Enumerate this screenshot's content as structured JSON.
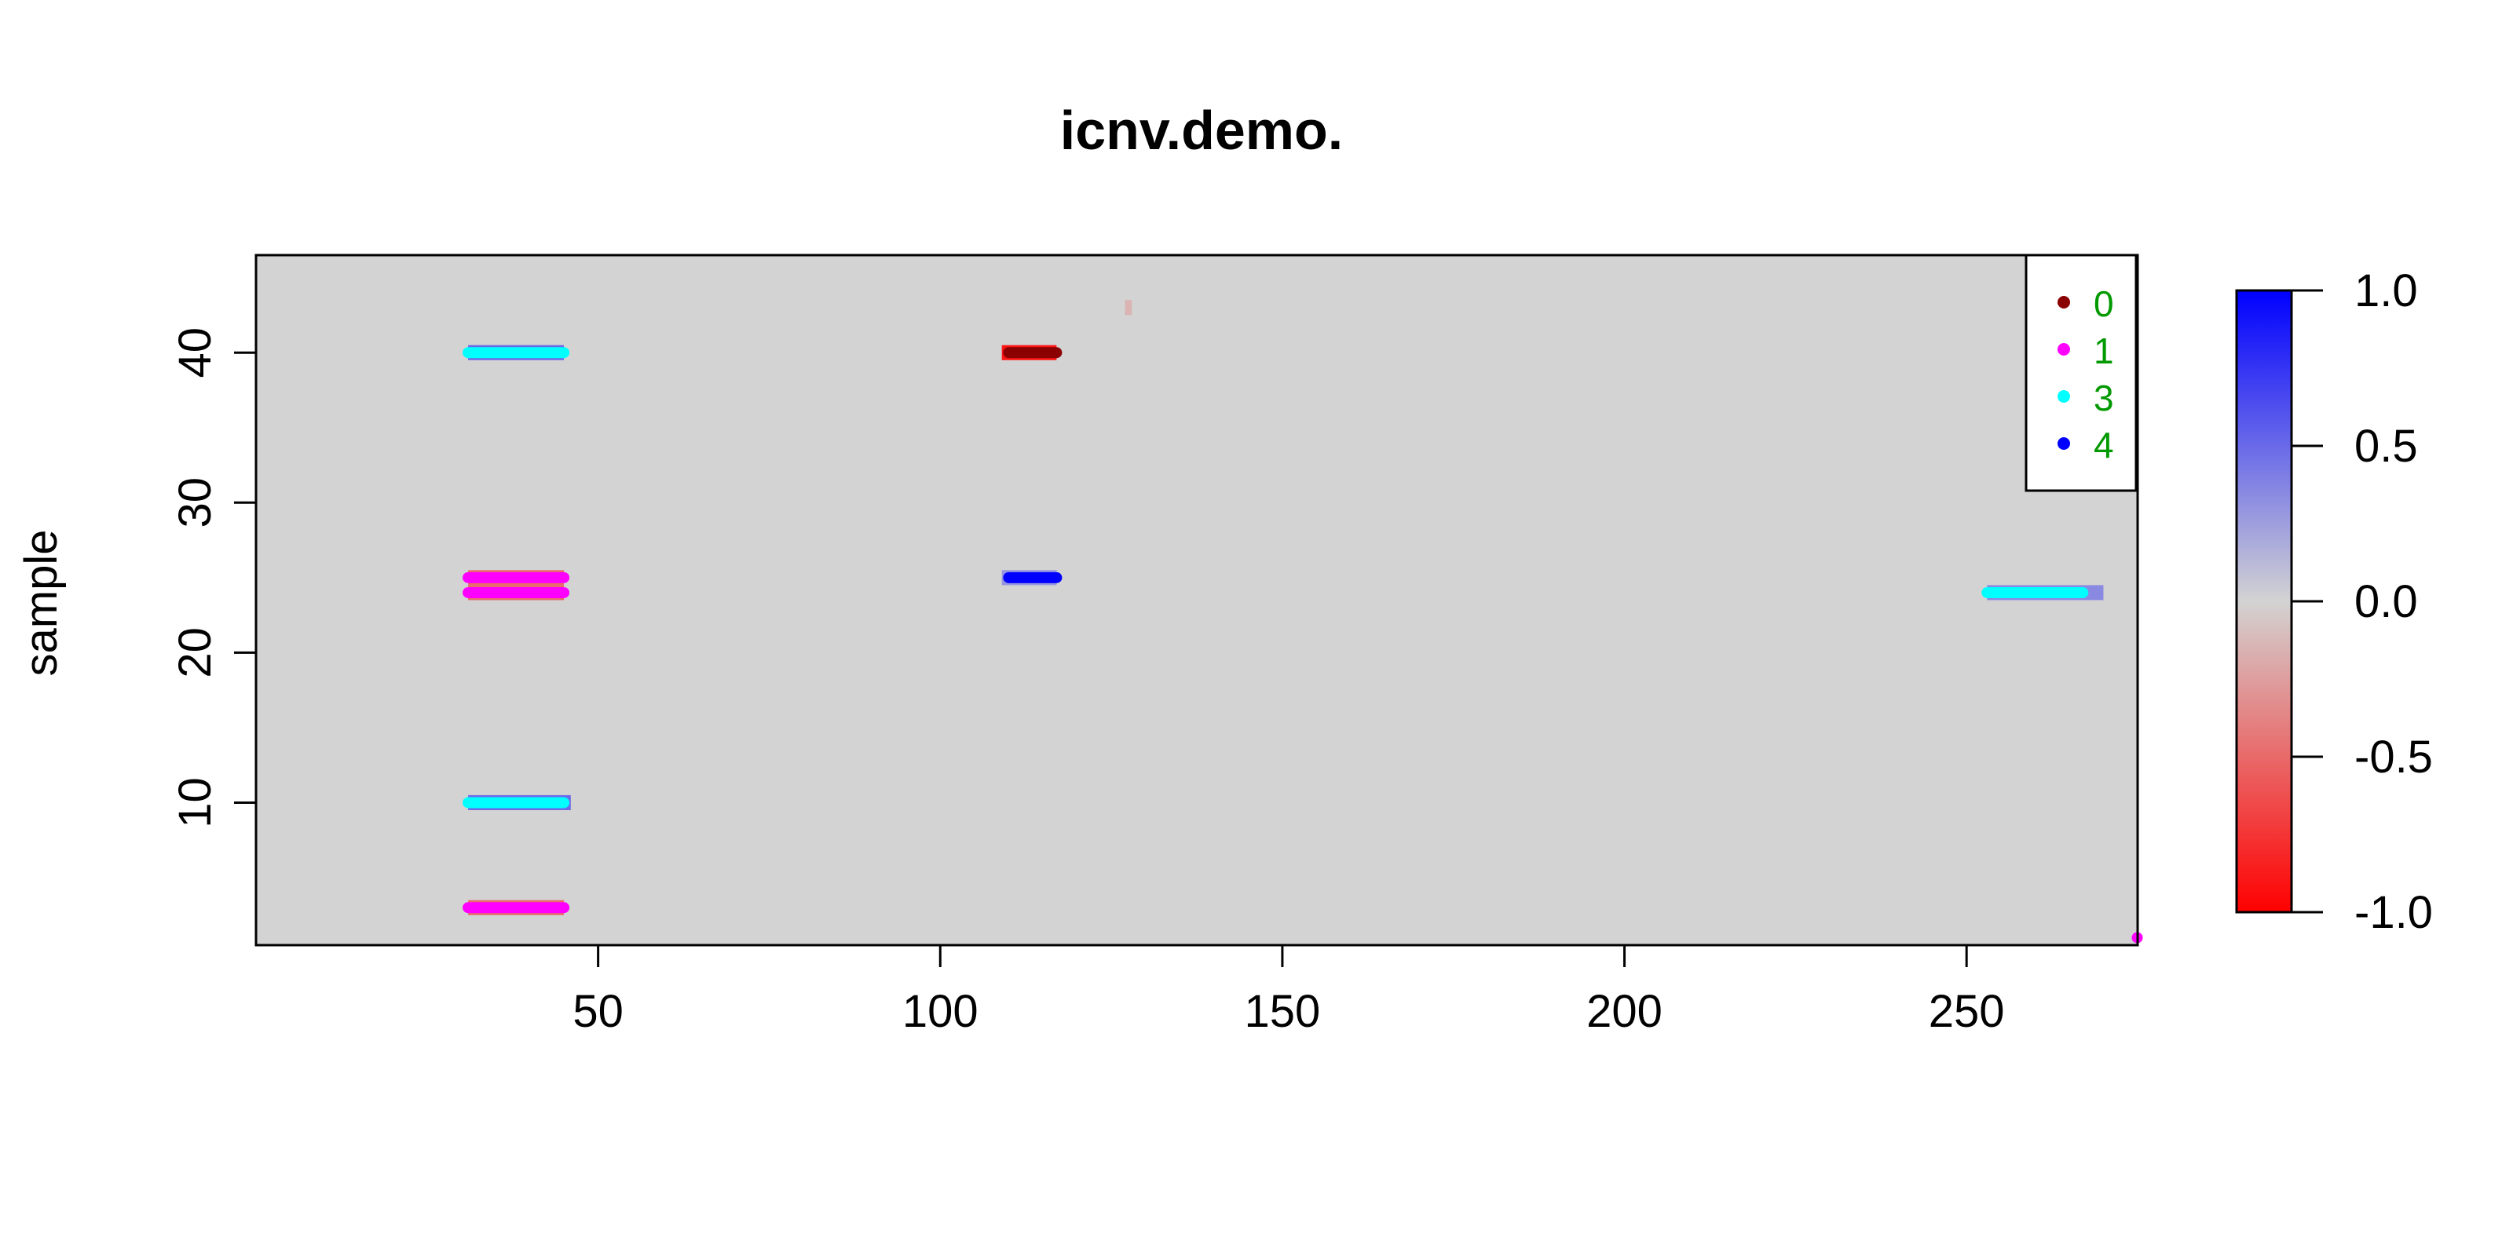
{
  "chart_data": {
    "type": "heatmap",
    "title": "icnv.demo.",
    "xlabel": "",
    "ylabel": "sample",
    "xlim": [
      0,
      275
    ],
    "ylim": [
      0.5,
      46.5
    ],
    "x_ticks": [
      50,
      100,
      150,
      200,
      250
    ],
    "x_tick_labels": [
      "50",
      "100",
      "150",
      "200",
      "250"
    ],
    "y_ticks": [
      10,
      20,
      30,
      40
    ],
    "y_tick_labels": [
      "10",
      "20",
      "30",
      "40"
    ],
    "background_color": "#d3d3d3",
    "color_scale": {
      "min": -1.0,
      "max": 1.0,
      "low_color": "#ff0000",
      "mid_color": "#d3d3d3",
      "high_color": "#0000ff",
      "ticks": [
        1.0,
        0.5,
        0.0,
        -0.5,
        -1.0
      ],
      "tick_labels": [
        "1.0",
        "0.5",
        "0.0",
        "-0.5",
        "-1.0"
      ]
    },
    "heat_segments": [
      {
        "sample": 40,
        "x_start": 31,
        "x_end": 45,
        "value": 0.5
      },
      {
        "sample": 25,
        "x_start": 31,
        "x_end": 45,
        "value": -0.5
      },
      {
        "sample": 24,
        "x_start": 31,
        "x_end": 45,
        "value": -0.5
      },
      {
        "sample": 10,
        "x_start": 31,
        "x_end": 46,
        "value": 0.5
      },
      {
        "sample": 3,
        "x_start": 31,
        "x_end": 45,
        "value": -0.5
      },
      {
        "sample": 40,
        "x_start": 109,
        "x_end": 117,
        "value": -0.9
      },
      {
        "sample": 25,
        "x_start": 109,
        "x_end": 117,
        "value": 0.3
      },
      {
        "sample": 43,
        "x_start": 127,
        "x_end": 128,
        "value": -0.15
      },
      {
        "sample": 24,
        "x_start": 253,
        "x_end": 270,
        "value": 0.35
      }
    ],
    "calls": [
      {
        "state": "3",
        "sample": 40,
        "x_start": 31,
        "x_end": 45
      },
      {
        "state": "1",
        "sample": 25,
        "x_start": 31,
        "x_end": 45
      },
      {
        "state": "1",
        "sample": 24,
        "x_start": 31,
        "x_end": 45
      },
      {
        "state": "3",
        "sample": 10,
        "x_start": 31,
        "x_end": 45
      },
      {
        "state": "1",
        "sample": 3,
        "x_start": 31,
        "x_end": 45
      },
      {
        "state": "0",
        "sample": 40,
        "x_start": 110,
        "x_end": 117
      },
      {
        "state": "4",
        "sample": 25,
        "x_start": 110,
        "x_end": 117
      },
      {
        "state": "3",
        "sample": 24,
        "x_start": 253,
        "x_end": 267
      },
      {
        "state": "1",
        "sample": 1,
        "x_start": 274.6,
        "x_end": 275
      }
    ],
    "legend": {
      "position": "top-right",
      "entries": [
        {
          "label": "0",
          "color": "#8b0000"
        },
        {
          "label": "1",
          "color": "#ff00ff"
        },
        {
          "label": "3",
          "color": "#00ffff"
        },
        {
          "label": "4",
          "color": "#0000ff"
        }
      ],
      "text_color": "#009900"
    },
    "grid": false
  }
}
